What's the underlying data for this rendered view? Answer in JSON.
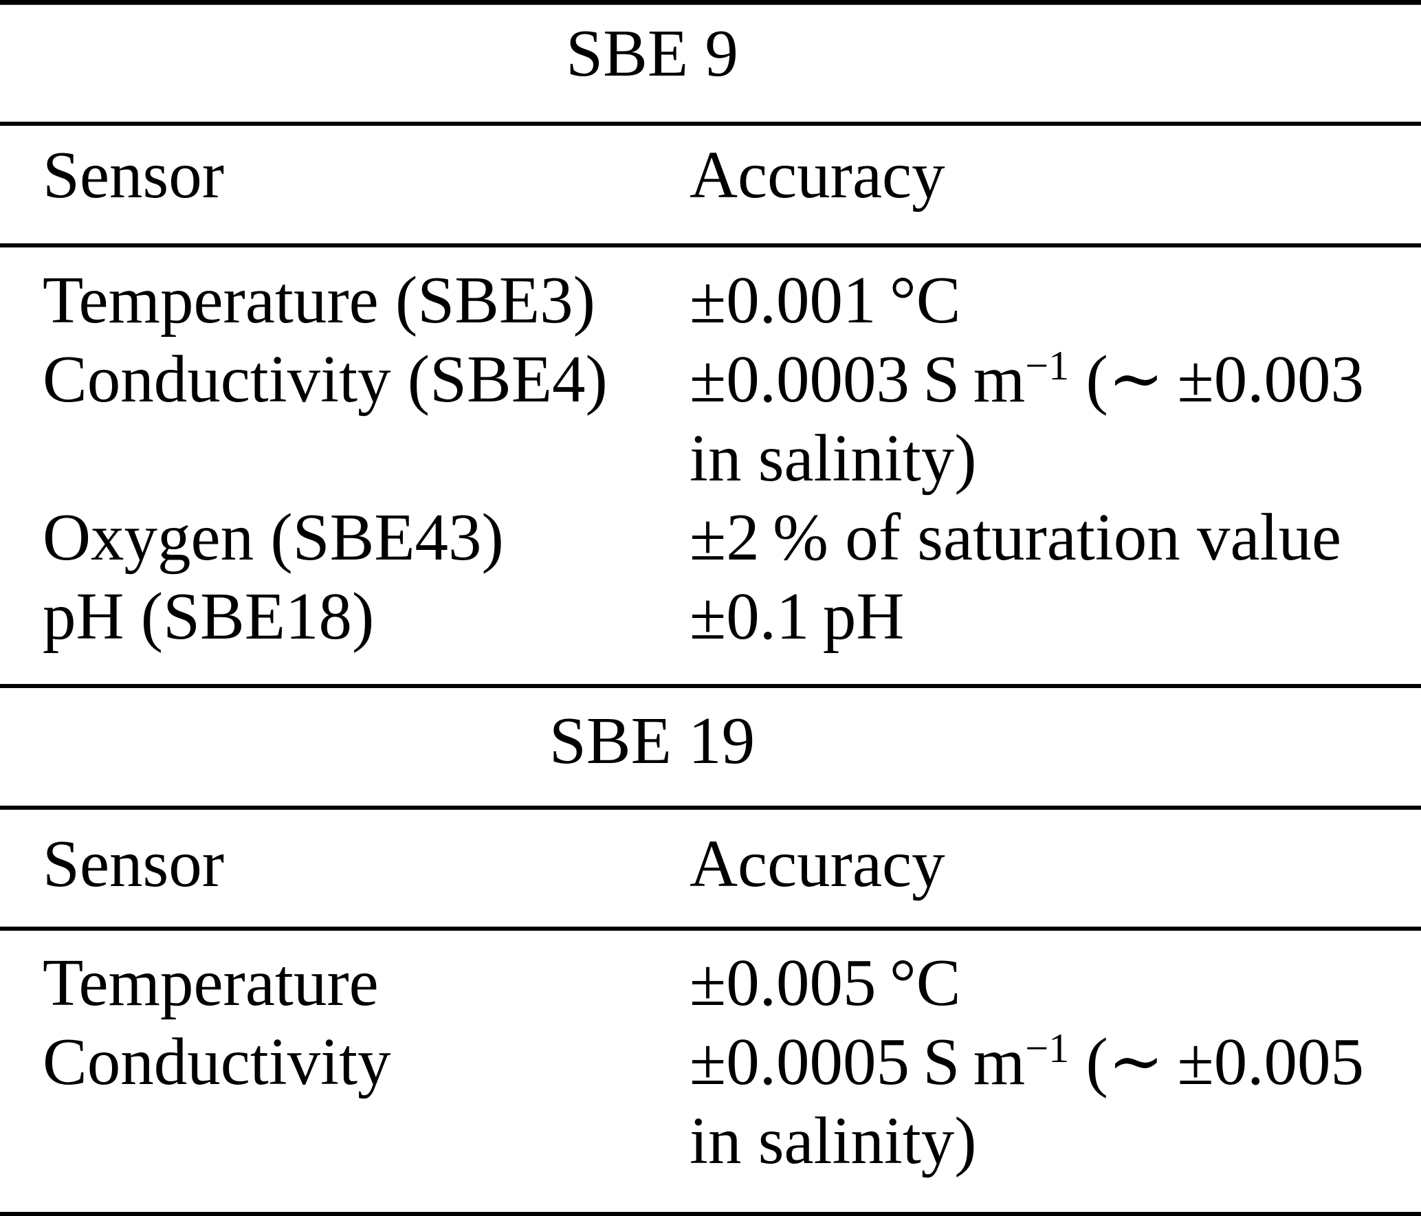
{
  "page": {
    "background": "#ffffff",
    "text_color": "#000000",
    "rule_color": "#000000"
  },
  "tables": [
    {
      "title": "SBE 9",
      "columns": [
        "Sensor",
        "Accuracy"
      ],
      "rows": [
        {
          "sensor": "Temperature (SBE3)",
          "accuracy_lines": [
            "±0.001 °C"
          ]
        },
        {
          "sensor": "Conductivity (SBE4)",
          "accuracy_lines": [
            [
              {
                "text": "±0.0003 S m"
              },
              {
                "text": "−1",
                "sup": true
              },
              {
                "text": " (∼ ±0.003"
              }
            ],
            "in salinity)"
          ]
        },
        {
          "sensor": "Oxygen (SBE43)",
          "accuracy_lines": [
            "±2 % of saturation value"
          ]
        },
        {
          "sensor": "pH (SBE18)",
          "accuracy_lines": [
            "±0.1 pH"
          ]
        }
      ]
    },
    {
      "title": "SBE 19",
      "columns": [
        "Sensor",
        "Accuracy"
      ],
      "rows": [
        {
          "sensor": "Temperature",
          "accuracy_lines": [
            "±0.005 °C"
          ]
        },
        {
          "sensor": "Conductivity",
          "accuracy_lines": [
            [
              {
                "text": "±0.0005 S m"
              },
              {
                "text": "−1",
                "sup": true
              },
              {
                "text": " (∼ ±0.005"
              }
            ],
            "in salinity)"
          ]
        }
      ]
    }
  ]
}
